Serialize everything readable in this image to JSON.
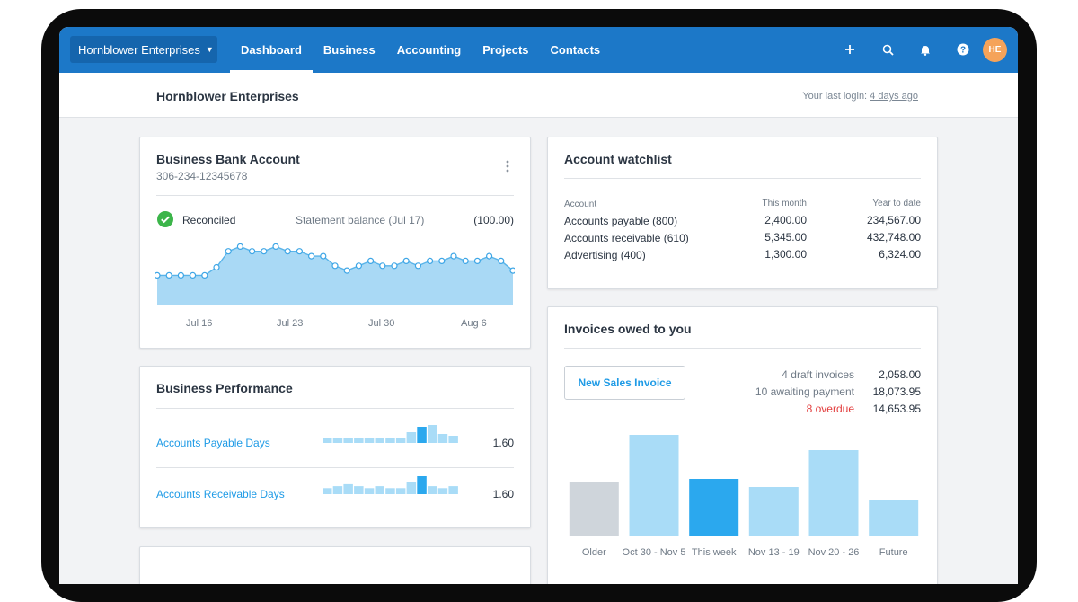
{
  "org_name": "Hornblower Enterprises",
  "nav": {
    "tabs": [
      {
        "label": "Dashboard"
      },
      {
        "label": "Business"
      },
      {
        "label": "Accounting"
      },
      {
        "label": "Projects"
      },
      {
        "label": "Contacts"
      }
    ],
    "icons": [
      "plus-icon",
      "search-icon",
      "bell-icon",
      "help-icon"
    ],
    "avatar_initials": "HE"
  },
  "subheader": {
    "title": "Hornblower Enterprises",
    "login_prefix": "Your last login: ",
    "login_link": "4 days ago"
  },
  "bank_account": {
    "title": "Business Bank Account",
    "account_number": "306-234-12345678",
    "status": "Reconciled",
    "statement_label": "Statement balance (Jul 17)",
    "statement_value": "(100.00)",
    "x_labels": [
      "Jul 16",
      "Jul 23",
      "Jul 30",
      "Aug 6"
    ]
  },
  "watchlist": {
    "title": "Account watchlist",
    "headers": [
      "Account",
      "This month",
      "Year to date"
    ],
    "rows": [
      {
        "account": "Accounts payable (800)",
        "this_month": "2,400.00",
        "ytd": "234,567.00"
      },
      {
        "account": "Accounts receivable (610)",
        "this_month": "5,345.00",
        "ytd": "432,748.00"
      },
      {
        "account": "Advertising (400)",
        "this_month": "1,300.00",
        "ytd": "6,324.00"
      }
    ]
  },
  "performance": {
    "title": "Business Performance",
    "rows": [
      {
        "label": "Accounts Payable Days",
        "value": "1.60"
      },
      {
        "label": "Accounts Receivable Days",
        "value": "1.60"
      }
    ]
  },
  "invoices": {
    "title": "Invoices owed to you",
    "button_label": "New Sales Invoice",
    "summary": [
      {
        "label": "4 draft invoices",
        "value": "2,058.00",
        "color": "#6f7a86"
      },
      {
        "label": "10 awaiting payment",
        "value": "18,073.95",
        "color": "#6f7a86"
      },
      {
        "label": "8 overdue",
        "value": "14,653.95",
        "color": "#e23c3c"
      }
    ]
  },
  "chart_data": [
    {
      "type": "area",
      "x": [
        0,
        1,
        2,
        3,
        4,
        5,
        6,
        7,
        8,
        9,
        10,
        11,
        12,
        13,
        14,
        15,
        16,
        17,
        18,
        19,
        20,
        21,
        22,
        23,
        24,
        25,
        26,
        27,
        28,
        29,
        30
      ],
      "y": [
        25,
        25,
        25,
        25,
        25,
        30,
        40,
        43,
        40,
        40,
        43,
        40,
        40,
        37,
        37,
        31,
        28,
        31,
        34,
        31,
        31,
        34,
        31,
        34,
        34,
        37,
        34,
        34,
        37,
        34,
        28
      ],
      "categories": [
        "Jul 16",
        "Jul 23",
        "Jul 30",
        "Aug 6"
      ],
      "ylim": [
        0,
        50
      ],
      "color": "#a9d9f5"
    },
    {
      "type": "bar",
      "categories": [
        "Older",
        "Oct 30 - Nov 5",
        "This week",
        "Nov 13 - 19",
        "Nov 20 - 26",
        "Future"
      ],
      "values": [
        60,
        112,
        63,
        54,
        95,
        40
      ],
      "highlight_index": 2,
      "colors": {
        "past": "#cfd5db",
        "normal": "#a9dcf7",
        "highlight": "#2ba8ee"
      }
    },
    {
      "type": "bar",
      "values": [
        3,
        3,
        3,
        3,
        3,
        3,
        3,
        3,
        6,
        9,
        10,
        5,
        4
      ],
      "highlight_index": 9
    },
    {
      "type": "bar",
      "values": [
        3,
        4,
        5,
        4,
        3,
        4,
        3,
        3,
        6,
        9,
        4,
        3,
        4
      ],
      "highlight_index": 9
    }
  ]
}
